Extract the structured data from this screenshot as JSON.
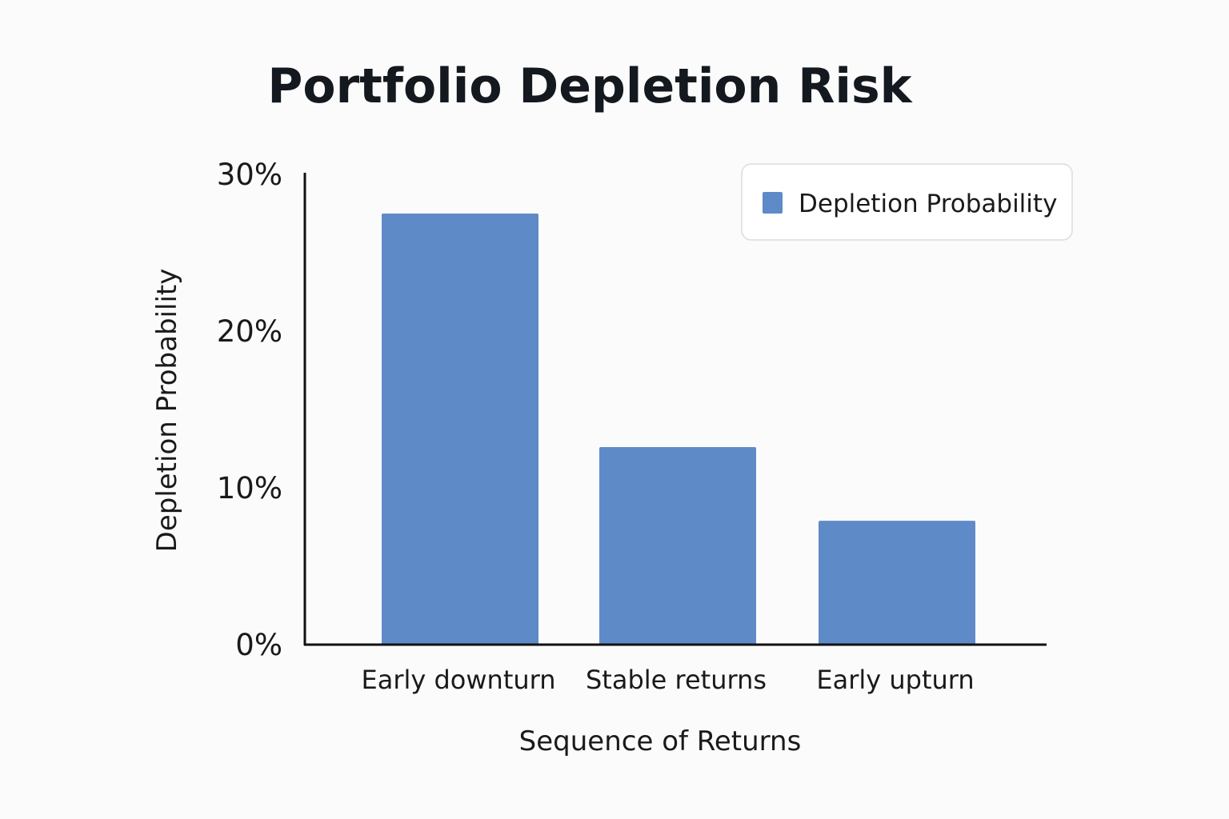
{
  "chart_data": {
    "type": "bar",
    "title": "Portfolio Depletion Risk",
    "xlabel": "Sequence of Returns",
    "ylabel": "Depletion Probability",
    "categories": [
      "Early downturn",
      "Stable returns",
      "Early upturn"
    ],
    "series": [
      {
        "name": "Depletion Probability",
        "values": [
          27.5,
          12.6,
          7.9
        ]
      }
    ],
    "ylim": [
      0,
      30
    ],
    "yticks": [
      0,
      10,
      20,
      30
    ],
    "ytick_labels": [
      "0%",
      "10%",
      "20%",
      "30%"
    ],
    "grid": false,
    "legend_position": "top-right",
    "colors": {
      "bar": "#5f8ac8",
      "axis": "#111111",
      "legend_border": "#dcdcdc"
    }
  }
}
